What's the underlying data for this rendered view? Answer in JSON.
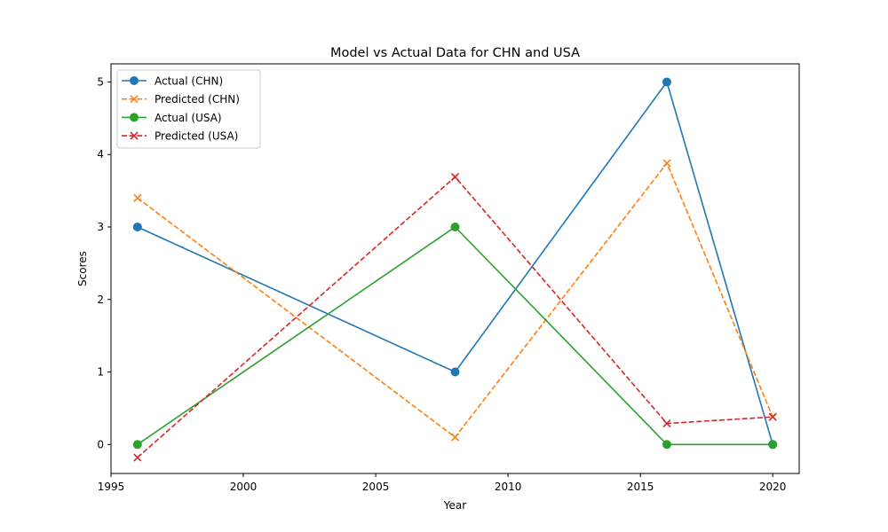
{
  "chart_data": {
    "type": "line",
    "title": "Model vs Actual Data for CHN and USA",
    "xlabel": "Year",
    "ylabel": "Scores",
    "xlim": [
      1995,
      2021
    ],
    "ylim": [
      -0.4,
      5.25
    ],
    "xticks": [
      1995,
      2000,
      2005,
      2010,
      2015,
      2020
    ],
    "yticks": [
      0,
      1,
      2,
      3,
      4,
      5
    ],
    "x": [
      1996,
      2008,
      2016,
      2020
    ],
    "legend_position": "top-left",
    "grid": false,
    "series": [
      {
        "name": "Actual (CHN)",
        "values": [
          3,
          1,
          5,
          0
        ],
        "color": "#1f77b4",
        "style": "solid",
        "marker": "circle"
      },
      {
        "name": "Predicted (CHN)",
        "values": [
          3.4,
          0.1,
          3.88,
          0.38
        ],
        "color": "#ff7f0e",
        "style": "dashed",
        "marker": "x"
      },
      {
        "name": "Actual (USA)",
        "values": [
          0,
          3,
          0,
          0
        ],
        "color": "#2ca02c",
        "style": "solid",
        "marker": "circle"
      },
      {
        "name": "Predicted (USA)",
        "values": [
          -0.18,
          3.69,
          0.29,
          0.38
        ],
        "color": "#d62728",
        "style": "dashed",
        "marker": "x"
      }
    ]
  }
}
